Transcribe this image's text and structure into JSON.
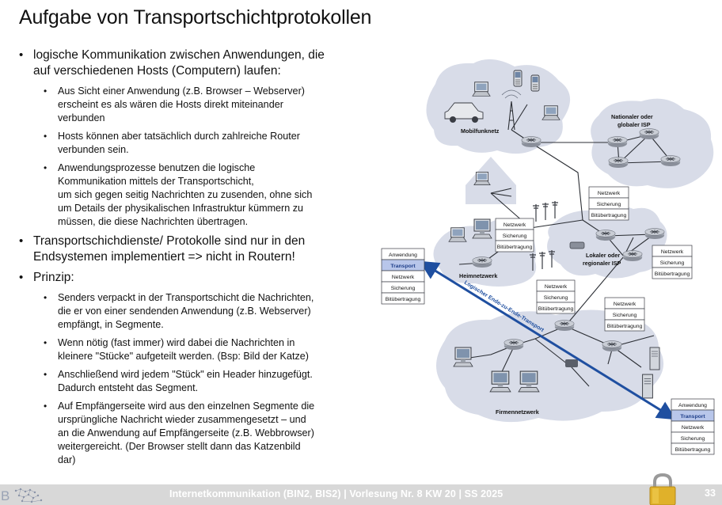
{
  "title": "Aufgabe von Transportschichtprotokollen",
  "bullets": [
    {
      "lines": [
        "logische Kommunikation zwischen Anwendungen, die",
        "auf verschiedenen Hosts (Computern) laufen:"
      ],
      "sub": [
        {
          "lines": [
            "Aus Sicht einer  Anwendung (z.B. Browser – Webserver)",
            "erscheint es als wären die Hosts direkt miteinander",
            "verbunden"
          ]
        },
        {
          "lines": [
            "Hosts können aber tatsächlich durch zahlreiche Router",
            "verbunden sein."
          ]
        },
        {
          "lines": [
            "Anwendungsprozesse benutzen die logische",
            "Kommunikation mittels der Transportschicht,",
            "um sich gegen seitig Nachrichten zu zusenden, ohne sich",
            "um Details der physikalischen  Infrastruktur kümmern zu",
            "müssen, die diese Nachrichten übertragen."
          ]
        }
      ]
    },
    {
      "lines": [
        "Transportschichdienste/ Protokolle sind nur in den",
        "Endsystemen implementiert => nicht in Routern!"
      ],
      "sub": []
    },
    {
      "lines": [
        "Prinzip:"
      ],
      "sub": [
        {
          "lines": [
            "Senders verpackt in der Transportschicht die Nachrichten,",
            "die er von einer sendenden Anwendung (z.B. Webserver)",
            "empfängt, in Segmente."
          ]
        },
        {
          "lines": [
            "Wenn nötig (fast immer) wird dabei die Nachrichten in",
            "kleinere \"Stücke\" aufgeteilt werden. (Bsp: Bild der Katze)"
          ]
        },
        {
          "lines": [
            "Anschließend wird jedem \"Stück\" ein Header hinzugefügt.",
            "Dadurch entsteht das Segment."
          ]
        },
        {
          "lines": [
            "Auf Empfängerseite wird aus den einzelnen Segmente die",
            "ursprüngliche Nachricht wieder zusammengesetzt – und",
            "an die Anwendung auf Empfängerseite (z.B. Webbrowser)",
            "weitergereicht. (Der Browser stellt dann das Katzenbild",
            "dar)"
          ]
        }
      ]
    }
  ],
  "diagram": {
    "clouds": {
      "mobile": "Mobilfunknetz",
      "national_1": "Nationaler oder",
      "national_2": "globaler ISP",
      "local_1": "Lokaler oder",
      "local_2": "regionaler ISP",
      "home": "Heimnetzwerk",
      "enterprise": "Firmennetzwerk"
    },
    "arrow_label": "Logischer Ende-zu-Ende-Transport",
    "stack5": [
      "Anwendung",
      "Transport",
      "Netzwerk",
      "Sicherung",
      "Bitübertragung"
    ],
    "stack3": [
      "Netzwerk",
      "Sicherung",
      "Bitübertragung"
    ],
    "colors": {
      "cloud": "#d8dce8",
      "transport_highlight": "#b8c6ea",
      "arrow": "#1f4fa0"
    }
  },
  "footer": {
    "text": "Internetkommunikation (BIN2, BIS2) | Vorlesung Nr. 8 KW 20 | SS 2025",
    "page": "33"
  },
  "icons": [
    "logo-icon",
    "padlock-icon",
    "router-icon",
    "laptop-icon",
    "phone-icon",
    "server-icon",
    "antenna-icon",
    "car-icon",
    "house-icon"
  ]
}
